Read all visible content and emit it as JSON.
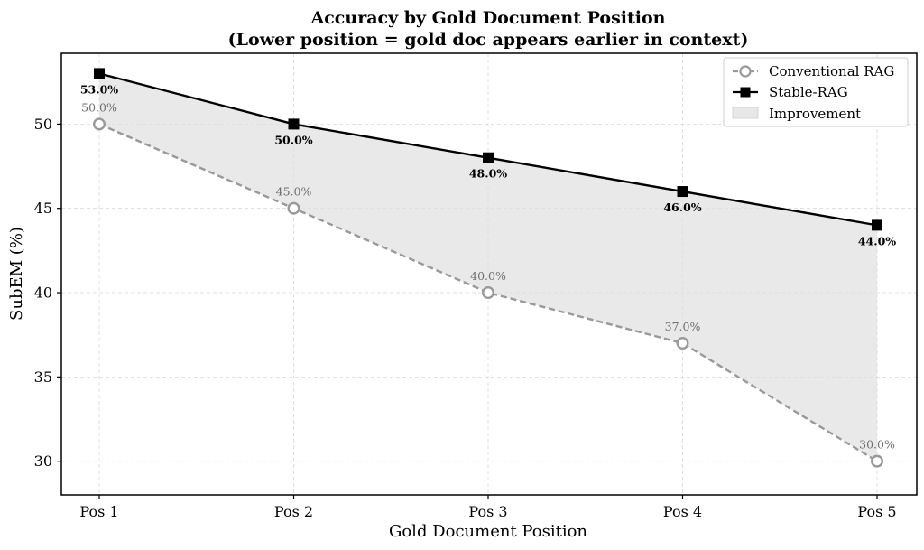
{
  "chart_data": {
    "type": "line",
    "title": "Accuracy by Gold Document Position",
    "subtitle": "(Lower position = gold doc appears earlier in context)",
    "xlabel": "Gold Document Position",
    "ylabel": "SubEM (%)",
    "categories": [
      "Pos 1",
      "Pos 2",
      "Pos 3",
      "Pos 4",
      "Pos 5"
    ],
    "ylim": [
      28,
      54.2
    ],
    "yticks": [
      30,
      35,
      40,
      45,
      50
    ],
    "grid": true,
    "legend_position": "top-right",
    "series": [
      {
        "name": "Conventional RAG",
        "values": [
          50,
          45,
          40,
          37,
          30
        ],
        "labels": [
          "50.0%",
          "45.0%",
          "40.0%",
          "37.0%",
          "30.0%"
        ],
        "color": "#999999",
        "line_style": "dashed",
        "marker": "circle-open"
      },
      {
        "name": "Stable-RAG",
        "values": [
          53,
          50,
          48,
          46,
          44
        ],
        "labels": [
          "53.0%",
          "50.0%",
          "48.0%",
          "46.0%",
          "44.0%"
        ],
        "color": "#000000",
        "line_style": "solid",
        "marker": "square-filled"
      }
    ],
    "fill_between": {
      "name": "Improvement",
      "color": "#e0e0e0"
    }
  }
}
